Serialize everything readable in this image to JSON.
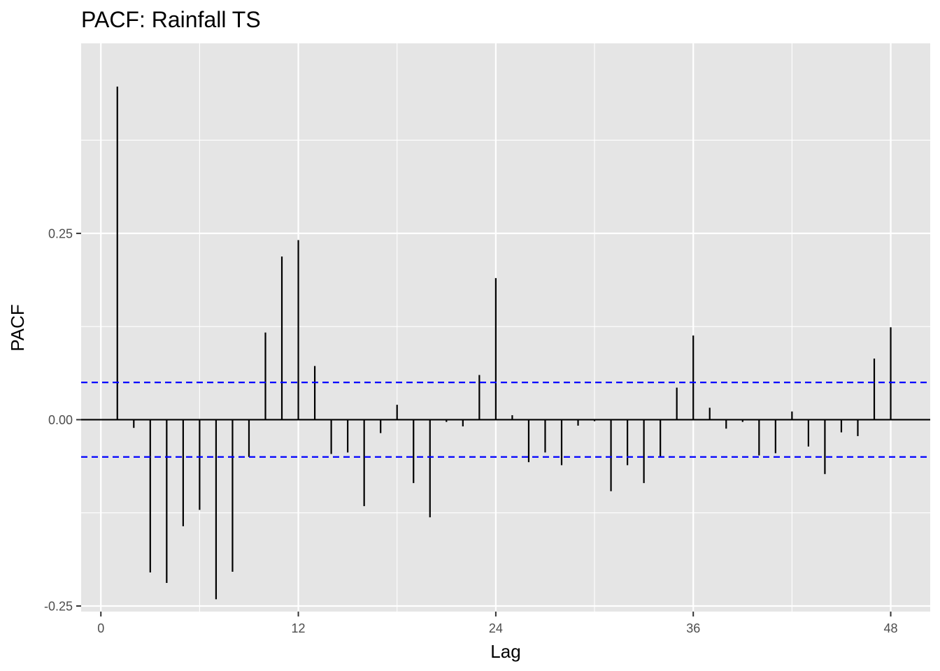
{
  "chart_data": {
    "type": "bar",
    "title": "PACF: Rainfall TS",
    "xlabel": "Lag",
    "ylabel": "PACF",
    "xlim": [
      -1.2,
      50.4
    ],
    "ylim": [
      -0.2575,
      0.505
    ],
    "x_ticks": [
      0,
      12,
      24,
      36,
      48
    ],
    "x_tick_labels": [
      "0",
      "12",
      "24",
      "36",
      "48"
    ],
    "y_ticks": [
      -0.25,
      0.0,
      0.25
    ],
    "y_tick_labels": [
      "-0.25",
      "0.00",
      "0.25"
    ],
    "confidence_bound": 0.05,
    "grid": true,
    "lags": [
      1,
      2,
      3,
      4,
      5,
      6,
      7,
      8,
      9,
      10,
      11,
      12,
      13,
      14,
      15,
      16,
      17,
      18,
      19,
      20,
      21,
      22,
      23,
      24,
      25,
      26,
      27,
      28,
      29,
      30,
      31,
      32,
      33,
      34,
      35,
      36,
      37,
      38,
      39,
      40,
      41,
      42,
      43,
      44,
      45,
      46,
      47,
      48
    ],
    "values": [
      0.447,
      -0.011,
      -0.205,
      -0.219,
      -0.143,
      -0.121,
      -0.241,
      -0.204,
      -0.05,
      0.117,
      0.219,
      0.241,
      0.072,
      -0.046,
      -0.044,
      -0.116,
      -0.018,
      0.02,
      -0.085,
      -0.131,
      -0.003,
      -0.009,
      0.06,
      0.19,
      0.006,
      -0.057,
      -0.044,
      -0.061,
      -0.008,
      -0.002,
      -0.096,
      -0.061,
      -0.085,
      -0.05,
      0.043,
      0.113,
      0.016,
      -0.012,
      -0.003,
      -0.048,
      -0.045,
      0.011,
      -0.036,
      -0.073,
      -0.017,
      -0.022,
      0.082,
      0.124
    ]
  },
  "colors": {
    "panel": "#e5e5e5",
    "grid": "#ffffff",
    "bar": "#000000",
    "bound": "#0000ff"
  }
}
